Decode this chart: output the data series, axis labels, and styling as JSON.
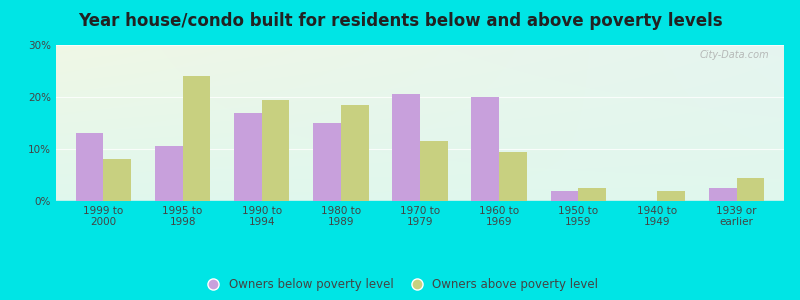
{
  "title": "Year house/condo built for residents below and above poverty levels",
  "categories": [
    "1999 to\n2000",
    "1995 to\n1998",
    "1990 to\n1994",
    "1980 to\n1989",
    "1970 to\n1979",
    "1960 to\n1969",
    "1950 to\n1959",
    "1940 to\n1949",
    "1939 or\nearlier"
  ],
  "below_poverty": [
    13,
    10.5,
    17,
    15,
    20.5,
    20,
    2,
    0,
    2.5
  ],
  "above_poverty": [
    8,
    24,
    19.5,
    18.5,
    11.5,
    9.5,
    2.5,
    2,
    4.5
  ],
  "below_color": "#c8a0dc",
  "above_color": "#c8d080",
  "background_outer": "#00e5e5",
  "ylim": [
    0,
    30
  ],
  "yticks": [
    0,
    10,
    20,
    30
  ],
  "ytick_labels": [
    "0%",
    "10%",
    "20%",
    "30%"
  ],
  "title_fontsize": 12,
  "tick_fontsize": 7.5,
  "legend_fontsize": 8.5,
  "bar_width": 0.35,
  "watermark": "City-Data.com"
}
